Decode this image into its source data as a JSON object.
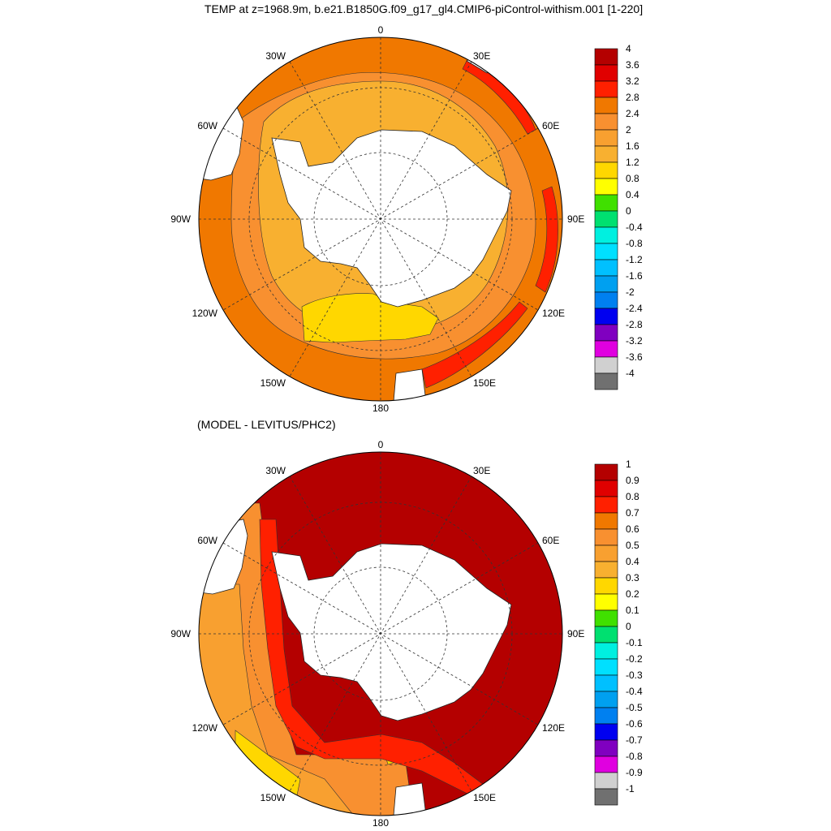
{
  "title": "TEMP at z=1968.9m, b.e21.B1850G.f09_g17_gl4.CMIP6-piControl-withism.001 [1-220]",
  "subtitle": "(MODEL - LEVITUS/PHC2)",
  "lon_labels": {
    "top": "0",
    "bottom": "180",
    "left": "90W",
    "right": "90E",
    "ul1": "30W",
    "ul2": "60W",
    "ur1": "30E",
    "ur2": "60E",
    "ll1": "120W",
    "ll2": "150W",
    "lr1": "120E",
    "lr2": "150E"
  },
  "colorbar_top": {
    "labels": [
      "4",
      "3.6",
      "3.2",
      "2.8",
      "2.4",
      "2",
      "1.6",
      "1.2",
      "0.8",
      "0.4",
      "0",
      "-0.4",
      "-0.8",
      "-1.2",
      "-1.6",
      "-2",
      "-2.4",
      "-2.8",
      "-3.2",
      "-3.6",
      "-4"
    ],
    "colors": [
      "#b40000",
      "#e00000",
      "#ff2000",
      "#f07800",
      "#f89030",
      "#f8a030",
      "#f8b030",
      "#ffd700",
      "#ffff00",
      "#40e000",
      "#00e070",
      "#00f0e0",
      "#00e0ff",
      "#00c0ff",
      "#00a0f0",
      "#0080f0",
      "#0000f0",
      "#8000c0",
      "#e000e0",
      "#d0d0d0",
      "#707070"
    ]
  },
  "colorbar_bottom": {
    "labels": [
      "1",
      "0.9",
      "0.8",
      "0.7",
      "0.6",
      "0.5",
      "0.4",
      "0.3",
      "0.2",
      "0.1",
      "0",
      "-0.1",
      "-0.2",
      "-0.3",
      "-0.4",
      "-0.5",
      "-0.6",
      "-0.7",
      "-0.8",
      "-0.9",
      "-1"
    ],
    "colors": [
      "#b40000",
      "#e00000",
      "#ff2000",
      "#f07800",
      "#f89030",
      "#f8a030",
      "#f8b030",
      "#ffd700",
      "#ffff00",
      "#40e000",
      "#00e070",
      "#00f0e0",
      "#00e0ff",
      "#00c0ff",
      "#00a0f0",
      "#0080f0",
      "#0000f0",
      "#8000c0",
      "#e000e0",
      "#d0d0d0",
      "#707070"
    ]
  },
  "map_colors": {
    "land": "#ffffff",
    "top_base": "#f07800",
    "top_mid": "#f89030",
    "top_warm": "#f8b030",
    "top_yellow": "#ffd700",
    "top_red": "#ff2000",
    "bottom_base": "#b40000",
    "bottom_mid": "#e00000",
    "bottom_red": "#ff2000",
    "bottom_orange": "#f89030",
    "bottom_light": "#f8a030",
    "bottom_yellow": "#ffd700"
  }
}
